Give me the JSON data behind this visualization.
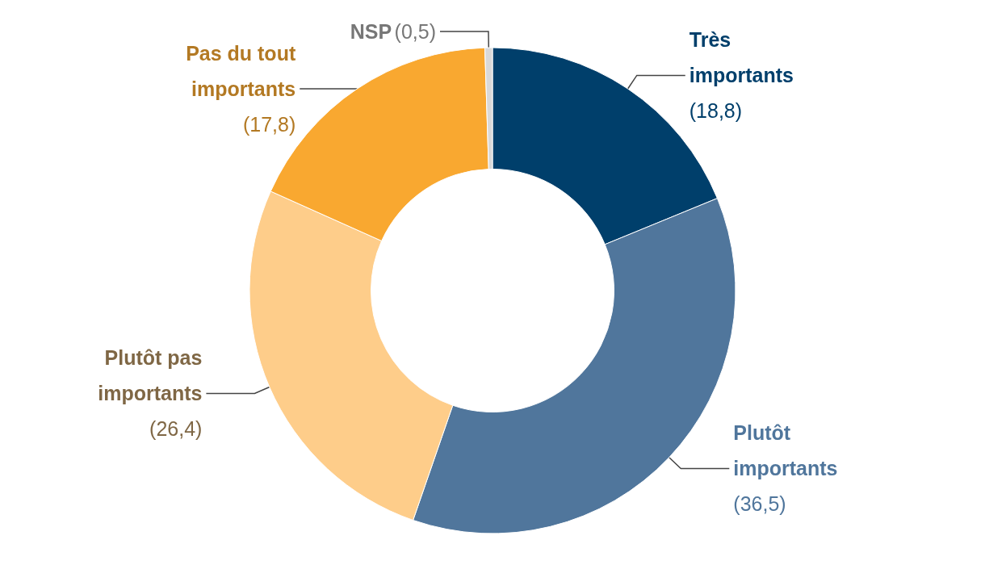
{
  "chart_data": {
    "type": "donut",
    "categories": [
      "Très importants",
      "Plutôt importants",
      "Plutôt pas importants",
      "Pas du tout importants",
      "NSP"
    ],
    "values": [
      18.8,
      36.5,
      26.4,
      17.8,
      0.5
    ],
    "value_labels": [
      "(18,8)",
      "(36,5)",
      "(26,4)",
      "(17,8)",
      "(0,5)"
    ],
    "colors": [
      "#003f6b",
      "#50769c",
      "#fecd8a",
      "#f9a830",
      "#d9d9d9"
    ],
    "legend": false
  }
}
